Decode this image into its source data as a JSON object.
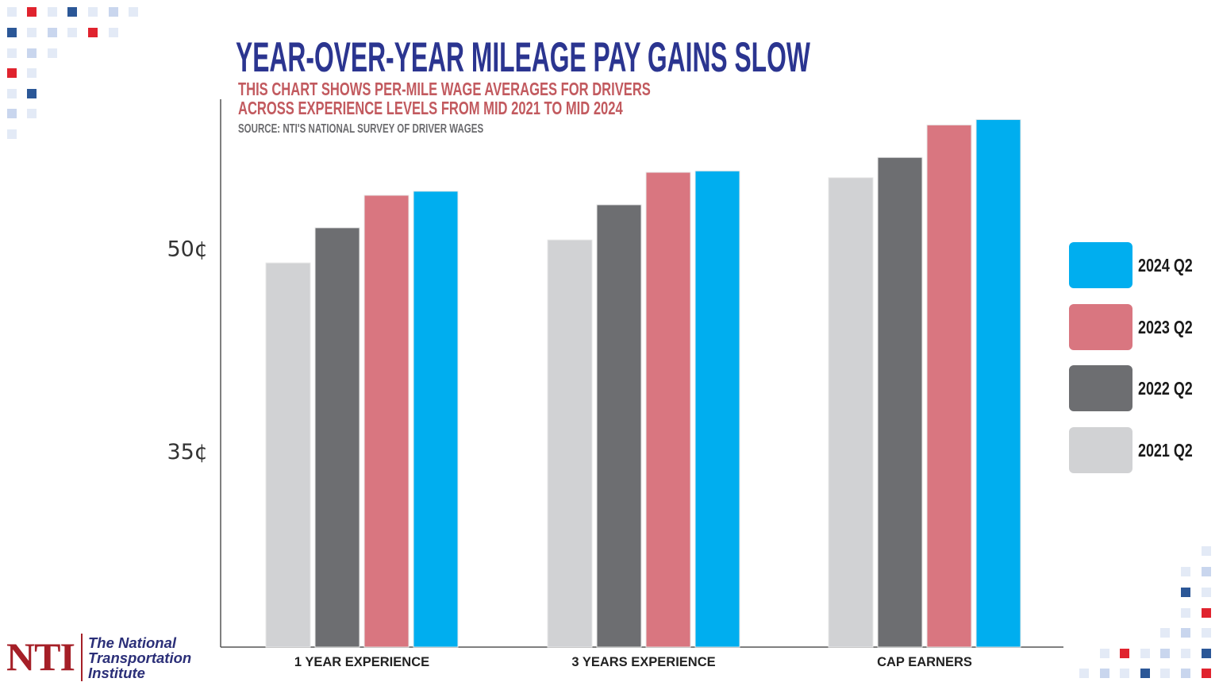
{
  "title": "YEAR-OVER-YEAR MILEAGE PAY GAINS SLOW",
  "subtitle_lines": [
    "THIS CHART SHOWS PER-MILE WAGE AVERAGES FOR DRIVERS",
    "ACROSS EXPERIENCE LEVELS FROM MID 2021 TO MID 2024"
  ],
  "source": "SOURCE: NTI'S NATIONAL SURVEY OF DRIVER WAGES",
  "logo": {
    "mark": "NTI",
    "name_lines": [
      "The National",
      "Transportation",
      "Institute"
    ]
  },
  "colors": {
    "title": "#2b3590",
    "subtitle": "#c25a5f",
    "brand_red": "#a51f27",
    "brand_blue": "#2b5797"
  },
  "chart_data": {
    "type": "bar",
    "title": "YEAR-OVER-YEAR MILEAGE PAY GAINS SLOW",
    "categories": [
      "1 YEAR EXPERIENCE",
      "3 YEARS EXPERIENCE",
      "CAP EARNERS"
    ],
    "series": [
      {
        "name": "2021 Q2",
        "color": "#d1d2d4",
        "values": [
          48.9,
          50.6,
          55.2
        ]
      },
      {
        "name": "2022 Q2",
        "color": "#6d6e71",
        "values": [
          51.5,
          53.2,
          56.7
        ]
      },
      {
        "name": "2023 Q2",
        "color": "#d97680",
        "values": [
          53.9,
          55.6,
          59.1
        ]
      },
      {
        "name": "2024 Q2",
        "color": "#00aeef",
        "values": [
          54.2,
          55.7,
          59.5
        ]
      }
    ],
    "yticks": [
      {
        "value": 35,
        "label": "35¢"
      },
      {
        "value": 50,
        "label": "50¢"
      }
    ],
    "ylim": [
      20.5,
      61
    ],
    "xlabel": "",
    "ylabel": "",
    "grid": false,
    "legend": {
      "placement": "right",
      "order": [
        "2024 Q2",
        "2023 Q2",
        "2022 Q2",
        "2021 Q2"
      ]
    }
  }
}
